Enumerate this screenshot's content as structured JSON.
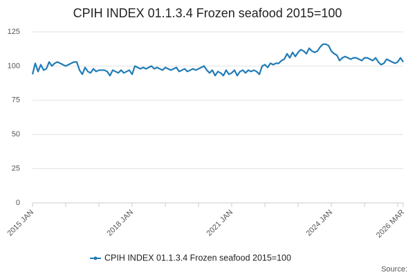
{
  "chart_data": {
    "type": "line",
    "title": "CPIH INDEX 01.1.3.4 Frozen seafood 2015=100",
    "source": "Source:",
    "categories": [
      "2015 JAN",
      null,
      null,
      null,
      null,
      null,
      null,
      null,
      null,
      null,
      null,
      null,
      null,
      null,
      null,
      null,
      null,
      null,
      null,
      null,
      null,
      null,
      null,
      null,
      null,
      null,
      null,
      null,
      null,
      null,
      null,
      null,
      null,
      null,
      null,
      null,
      "2018 JAN",
      null,
      null,
      null,
      null,
      null,
      null,
      null,
      null,
      null,
      null,
      null,
      null,
      null,
      null,
      null,
      null,
      null,
      null,
      null,
      null,
      null,
      null,
      null,
      null,
      null,
      null,
      null,
      null,
      null,
      null,
      null,
      null,
      null,
      null,
      null,
      "2021 JAN",
      null,
      null,
      null,
      null,
      null,
      null,
      null,
      null,
      null,
      null,
      null,
      null,
      null,
      null,
      null,
      null,
      null,
      null,
      null,
      null,
      null,
      null,
      null,
      null,
      null,
      null,
      null,
      null,
      null,
      null,
      null,
      null,
      null,
      null,
      null,
      "2024 JAN",
      null,
      null,
      null,
      null,
      null,
      null,
      null,
      null,
      null,
      null,
      null,
      null,
      null,
      null,
      null,
      null,
      null,
      null,
      null,
      null,
      null,
      null,
      null,
      null,
      null,
      "2026 MAR"
    ],
    "series": [
      {
        "name": "CPIH INDEX 01.1.3.4 Frozen seafood 2015=100",
        "color": "#1f7bb6",
        "values": [
          94,
          102,
          96,
          101,
          97,
          98,
          103,
          100,
          102,
          103,
          102,
          101,
          100,
          101,
          102,
          103,
          103,
          97,
          94,
          99,
          96,
          95,
          98,
          96,
          97,
          97,
          97,
          96,
          93,
          97,
          96,
          95,
          97,
          95,
          96,
          97,
          94,
          100,
          99,
          98,
          99,
          98,
          99,
          100,
          98,
          99,
          98,
          97,
          99,
          98,
          97,
          98,
          99,
          96,
          97,
          98,
          96,
          97,
          98,
          97,
          98,
          99,
          100,
          97,
          95,
          97,
          93,
          96,
          95,
          93,
          97,
          94,
          95,
          97,
          93,
          96,
          97,
          95,
          97,
          96,
          97,
          96,
          94,
          100,
          101,
          99,
          102,
          101,
          102,
          102,
          104,
          105,
          109,
          106,
          110,
          107,
          110,
          112,
          111,
          109,
          113,
          111,
          110,
          111,
          114,
          116,
          116,
          115,
          111,
          109,
          108,
          104,
          106,
          107,
          106,
          105,
          106,
          106,
          105,
          104,
          106,
          106,
          105,
          104,
          106,
          103,
          101,
          102,
          105,
          104,
          103,
          102,
          103,
          106,
          103
        ]
      }
    ],
    "ylim": [
      0,
      125
    ],
    "yticks": [
      0,
      25,
      50,
      75,
      100,
      125
    ],
    "grid": true
  }
}
